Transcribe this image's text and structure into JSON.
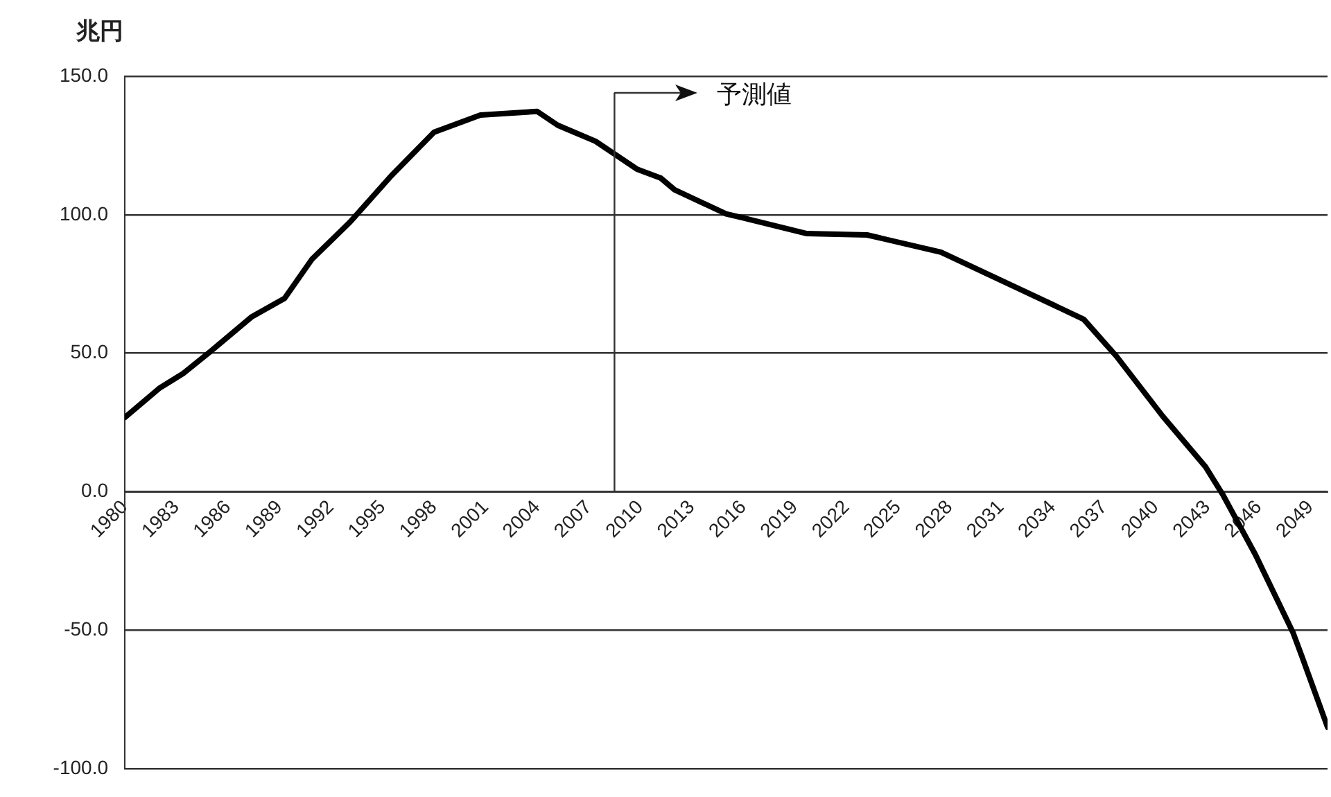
{
  "chart_data": {
    "type": "line",
    "ylabel": "兆円",
    "xlim": [
      1980,
      2050
    ],
    "xticks": [
      1980,
      1983,
      1986,
      1989,
      1992,
      1995,
      1998,
      2001,
      2004,
      2007,
      2010,
      2013,
      2016,
      2019,
      2022,
      2025,
      2028,
      2031,
      2034,
      2037,
      2040,
      2043,
      2046,
      2049
    ],
    "ylim": [
      -100,
      150
    ],
    "yticks": [
      {
        "value": 150,
        "label": "150.0"
      },
      {
        "value": 100,
        "label": "100.0"
      },
      {
        "value": 50,
        "label": "50.0"
      },
      {
        "value": 0,
        "label": "0.0"
      },
      {
        "value": -50,
        "label": "-50.0"
      },
      {
        "value": -100,
        "label": "-100.0"
      }
    ],
    "grid": "y",
    "legend": false,
    "marker": "none",
    "line_style": "solid",
    "ref_lines": [
      {
        "axis": "x",
        "value": 2008.5,
        "label": "予測値"
      }
    ],
    "series": [
      {
        "color": "#000000",
        "x": [
          1980,
          1982,
          1983.4,
          1985,
          1987.4,
          1989.3,
          1990.9,
          1993.1,
          1995.5,
          1998,
          2000.7,
          2004,
          2005.2,
          2007.4,
          2009.8,
          2011.2,
          2012,
          2015,
          2015.9,
          2019.7,
          2023.2,
          2027.5,
          2031.8,
          2035.8,
          2037.7,
          2040.4,
          2042.9,
          2043.9,
          2045.8,
          2048,
          2048.5,
          2050
        ],
        "values": [
          26.8,
          37.3,
          42.7,
          50.7,
          63.2,
          69.8,
          84,
          97.3,
          114,
          129.8,
          136,
          137.3,
          132.3,
          126.5,
          116.5,
          113.2,
          109,
          100.3,
          99,
          93.2,
          92.7,
          86.5,
          74,
          62.3,
          49,
          27.3,
          9,
          -1,
          -22.7,
          -51,
          -59.3,
          -85
        ]
      }
    ]
  }
}
